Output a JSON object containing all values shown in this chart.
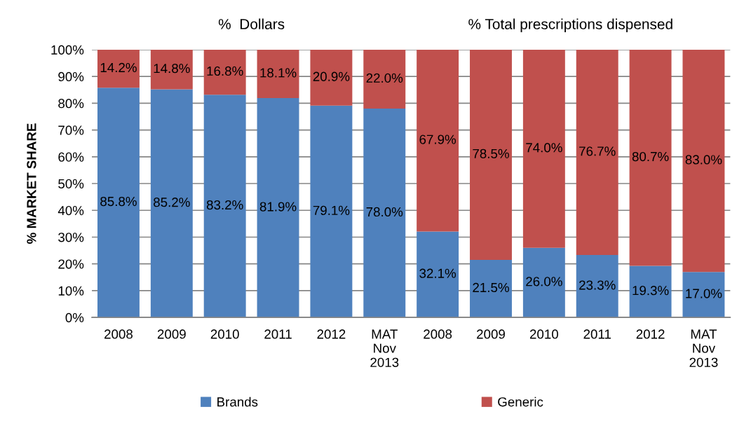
{
  "chart_data": {
    "type": "bar",
    "stacked": true,
    "annotations": [
      "%  Dollars",
      "% Total prescriptions dispensed"
    ],
    "ylabel": "% MARKET SHARE",
    "categories": [
      "2008",
      "2009",
      "2010",
      "2011",
      "2012",
      "MAT\nNov\n2013",
      "2008",
      "2009",
      "2010",
      "2011",
      "2012",
      "MAT\nNov\n2013"
    ],
    "series": [
      {
        "name": "Brands",
        "color": "#4f81bd",
        "values": [
          85.8,
          85.2,
          83.2,
          81.9,
          79.1,
          78.0,
          32.1,
          21.5,
          26.0,
          23.3,
          19.3,
          17.0
        ],
        "value_labels": [
          "85.8%",
          "85.2%",
          "83.2%",
          "81.9%",
          "79.1%",
          "78.0%",
          "32.1%",
          "21.5%",
          "26.0%",
          "23.3%",
          "19.3%",
          "17.0%"
        ]
      },
      {
        "name": "Generic",
        "color": "#c0504d",
        "values": [
          14.2,
          14.8,
          16.8,
          18.1,
          20.9,
          22.0,
          67.9,
          78.5,
          74.0,
          76.7,
          80.7,
          83.0
        ],
        "value_labels": [
          "14.2%",
          "14.8%",
          "16.8%",
          "18.1%",
          "20.9%",
          "22.0%",
          "67.9%",
          "78.5%",
          "74.0%",
          "76.7%",
          "80.7%",
          "83.0%"
        ]
      }
    ],
    "ylim": [
      0,
      100
    ],
    "yticks": [
      {
        "value": 0,
        "label": "0%"
      },
      {
        "value": 10,
        "label": "10%"
      },
      {
        "value": 20,
        "label": "20%"
      },
      {
        "value": 30,
        "label": "30%"
      },
      {
        "value": 40,
        "label": "40%"
      },
      {
        "value": 50,
        "label": "50%"
      },
      {
        "value": 60,
        "label": "60%"
      },
      {
        "value": 70,
        "label": "70%"
      },
      {
        "value": 80,
        "label": "80%"
      },
      {
        "value": 90,
        "label": "90%"
      },
      {
        "value": 100,
        "label": "100%"
      }
    ],
    "grid": "y",
    "legend": "bottom"
  }
}
